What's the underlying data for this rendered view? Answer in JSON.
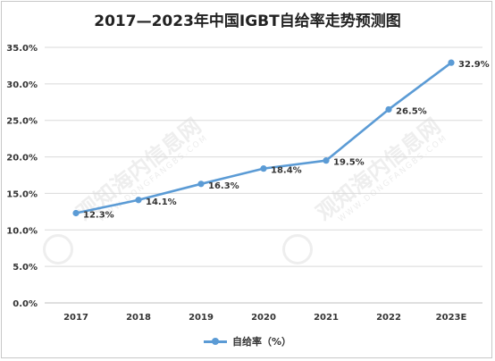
{
  "chart_data": {
    "type": "line",
    "title": "2017—2023年中国IGBT自给率走势预测图",
    "categories": [
      "2017",
      "2018",
      "2019",
      "2020",
      "2021",
      "2022",
      "2023E"
    ],
    "series": [
      {
        "name": "自给率（%）",
        "values": [
          12.3,
          14.1,
          16.3,
          18.4,
          19.5,
          26.5,
          32.9
        ],
        "labels": [
          "12.3%",
          "14.1%",
          "16.3%",
          "18.4%",
          "19.5%",
          "26.5%",
          "32.9%"
        ],
        "color": "#5b9bd5"
      }
    ],
    "ylim": [
      0,
      35
    ],
    "yticks": [
      "0.0%",
      "5.0%",
      "10.0%",
      "15.0%",
      "20.0%",
      "25.0%",
      "30.0%",
      "35.0%"
    ],
    "xlabel": "",
    "ylabel": "",
    "grid": true,
    "legend": "bottom"
  },
  "watermark": {
    "text": "观知海内信息网",
    "sub": "WWW.DONGFANGBS.COM"
  }
}
